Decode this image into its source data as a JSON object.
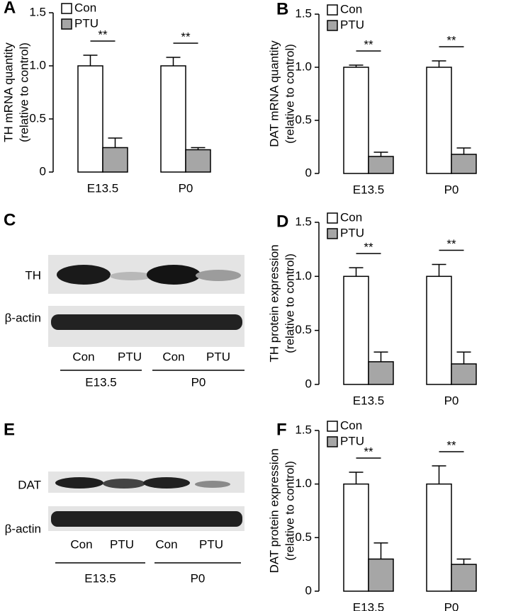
{
  "chart_data": [
    {
      "type": "bar",
      "panel": "A",
      "ylabel": [
        "TH mRNA quantity",
        "(relative to control)"
      ],
      "categories": [
        "E13.5",
        "P0"
      ],
      "series": [
        {
          "name": "Con",
          "color": "#ffffff",
          "values": [
            1.0,
            1.0
          ],
          "errors": [
            0.1,
            0.08
          ]
        },
        {
          "name": "PTU",
          "color": "#a6a6a6",
          "values": [
            0.23,
            0.21
          ],
          "errors": [
            0.09,
            0.02
          ]
        }
      ],
      "annotations": [
        "**",
        "**"
      ],
      "ylim": [
        0,
        1.5
      ],
      "yticks": [
        0,
        0.5,
        {
          "value": 1,
          "label": "1.0"
        },
        1.5
      ]
    },
    {
      "type": "bar",
      "panel": "B",
      "ylabel": [
        "DAT mRNA quantity",
        "(relative to control)"
      ],
      "categories": [
        "E13.5",
        "P0"
      ],
      "series": [
        {
          "name": "Con",
          "color": "#ffffff",
          "values": [
            1.0,
            1.0
          ],
          "errors": [
            0.02,
            0.06
          ]
        },
        {
          "name": "PTU",
          "color": "#a6a6a6",
          "values": [
            0.16,
            0.18
          ],
          "errors": [
            0.04,
            0.06
          ]
        }
      ],
      "annotations": [
        "**",
        "**"
      ],
      "ylim": [
        0,
        1.5
      ],
      "yticks": [
        0,
        0.5,
        {
          "value": 1,
          "label": "1.0"
        },
        1.5
      ]
    },
    {
      "type": "bar",
      "panel": "D",
      "ylabel": [
        "TH protein expression",
        "(relative to control)"
      ],
      "categories": [
        "E13.5",
        "P0"
      ],
      "series": [
        {
          "name": "Con",
          "color": "#ffffff",
          "values": [
            1.0,
            1.0
          ],
          "errors": [
            0.08,
            0.11
          ]
        },
        {
          "name": "PTU",
          "color": "#a6a6a6",
          "values": [
            0.21,
            0.19
          ],
          "errors": [
            0.09,
            0.11
          ]
        }
      ],
      "annotations": [
        "**",
        "**"
      ],
      "ylim": [
        0,
        1.5
      ],
      "yticks": [
        0,
        0.5,
        {
          "value": 1,
          "label": "1.0"
        },
        1.5
      ]
    },
    {
      "type": "bar",
      "panel": "F",
      "ylabel": [
        "DAT protein expression",
        "(relative to control)"
      ],
      "categories": [
        "E13.5",
        "P0"
      ],
      "series": [
        {
          "name": "Con",
          "color": "#ffffff",
          "values": [
            1.0,
            1.0
          ],
          "errors": [
            0.11,
            0.17
          ]
        },
        {
          "name": "PTU",
          "color": "#a6a6a6",
          "values": [
            0.3,
            0.25
          ],
          "errors": [
            0.15,
            0.05
          ]
        }
      ],
      "annotations": [
        "**",
        "**"
      ],
      "ylim": [
        0,
        1.5
      ],
      "yticks": [
        0,
        0.5,
        {
          "value": 1,
          "label": "1.0"
        },
        1.5
      ]
    }
  ],
  "blots": [
    {
      "panel": "C",
      "rows": [
        "TH",
        "β-actin"
      ],
      "lanes": [
        "Con",
        "PTU",
        "Con",
        "PTU"
      ],
      "groups": [
        "E13.5",
        "P0"
      ]
    },
    {
      "panel": "E",
      "rows": [
        "DAT",
        "β-actin"
      ],
      "lanes": [
        "Con",
        "PTU",
        "Con",
        "PTU"
      ],
      "groups": [
        "E13.5",
        "P0"
      ]
    }
  ]
}
